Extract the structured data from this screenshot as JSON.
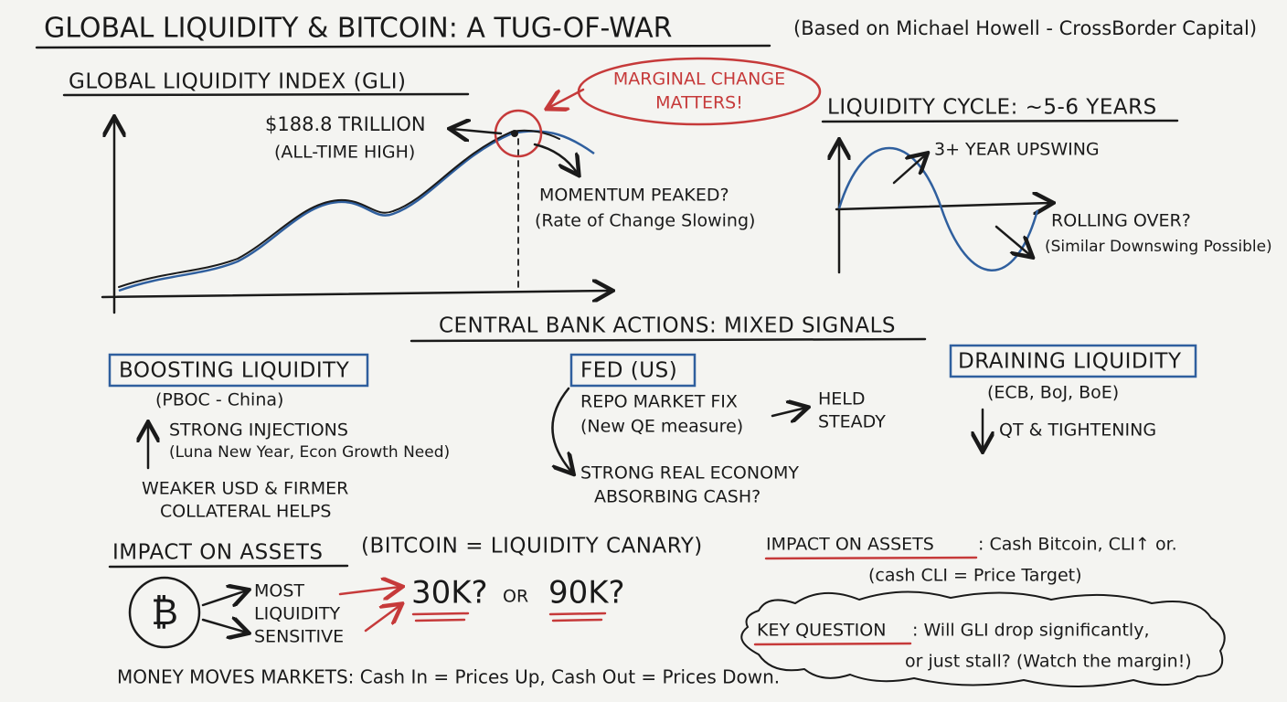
{
  "header": {
    "title": "GLOBAL LIQUIDITY & BITCOIN: A TUG-OF-WAR",
    "subtitle": "(Based on Michael Howell - CrossBorder Capital)"
  },
  "gli": {
    "heading": "GLOBAL LIQUIDITY INDEX (GLI)",
    "peak_value": "$188.8 TRILLION",
    "peak_note": "(ALL-TIME HIGH)",
    "callout": [
      "MARGINAL CHANGE",
      "MATTERS!"
    ],
    "momentum": "MOMENTUM PEAKED?",
    "momentum_note": "(Rate of Change Slowing)"
  },
  "cycle": {
    "heading": "LIQUIDITY CYCLE: ~5-6 YEARS",
    "upswing": "3+ YEAR UPSWING",
    "rolling": "ROLLING OVER?",
    "rolling_note": "(Similar Downswing Possible)"
  },
  "central_banks": {
    "heading": "CENTRAL BANK ACTIONS: MIXED SIGNALS",
    "boosting": {
      "title": "BOOSTING LIQUIDITY",
      "who": "(PBOC - China)",
      "lines": [
        "STRONG INJECTIONS",
        "(Luna New Year, Econ Growth Need)",
        "WEAKER USD & FIRMER",
        "COLLATERAL HELPS"
      ]
    },
    "fed": {
      "title": "FED (US)",
      "lines": [
        "REPO MARKET FIX",
        "(New QE measure)",
        "HELD",
        "STEADY",
        "STRONG REAL ECONOMY",
        "ABSORBING CASH?"
      ]
    },
    "draining": {
      "title": "DRAINING LIQUIDITY",
      "who": "(ECB, BoJ, BoE)",
      "lines": [
        "QT & TIGHTENING"
      ]
    }
  },
  "impact": {
    "heading": "IMPACT ON ASSETS",
    "subheading": "(BITCOIN = LIQUIDITY CANARY)",
    "symbol": "₿",
    "sensitivity": [
      "MOST",
      "LIQUIDITY",
      "SENSITIVE"
    ],
    "target_low": "30K?",
    "or": "OR",
    "target_high": "90K?",
    "footer": "MONEY MOVES MARKETS: Cash In = Prices Up, Cash Out = Prices Down."
  },
  "impact_right": {
    "heading": "IMPACT ON ASSETS",
    "text": ": Cash Bitcoin, CLI↑ or.",
    "note": "(cash CLI = Price Target)"
  },
  "key_question": {
    "label": "KEY QUESTION",
    "lines": [
      ": Will GLI drop significantly,",
      "or just stall? (Watch the margin!)"
    ]
  }
}
